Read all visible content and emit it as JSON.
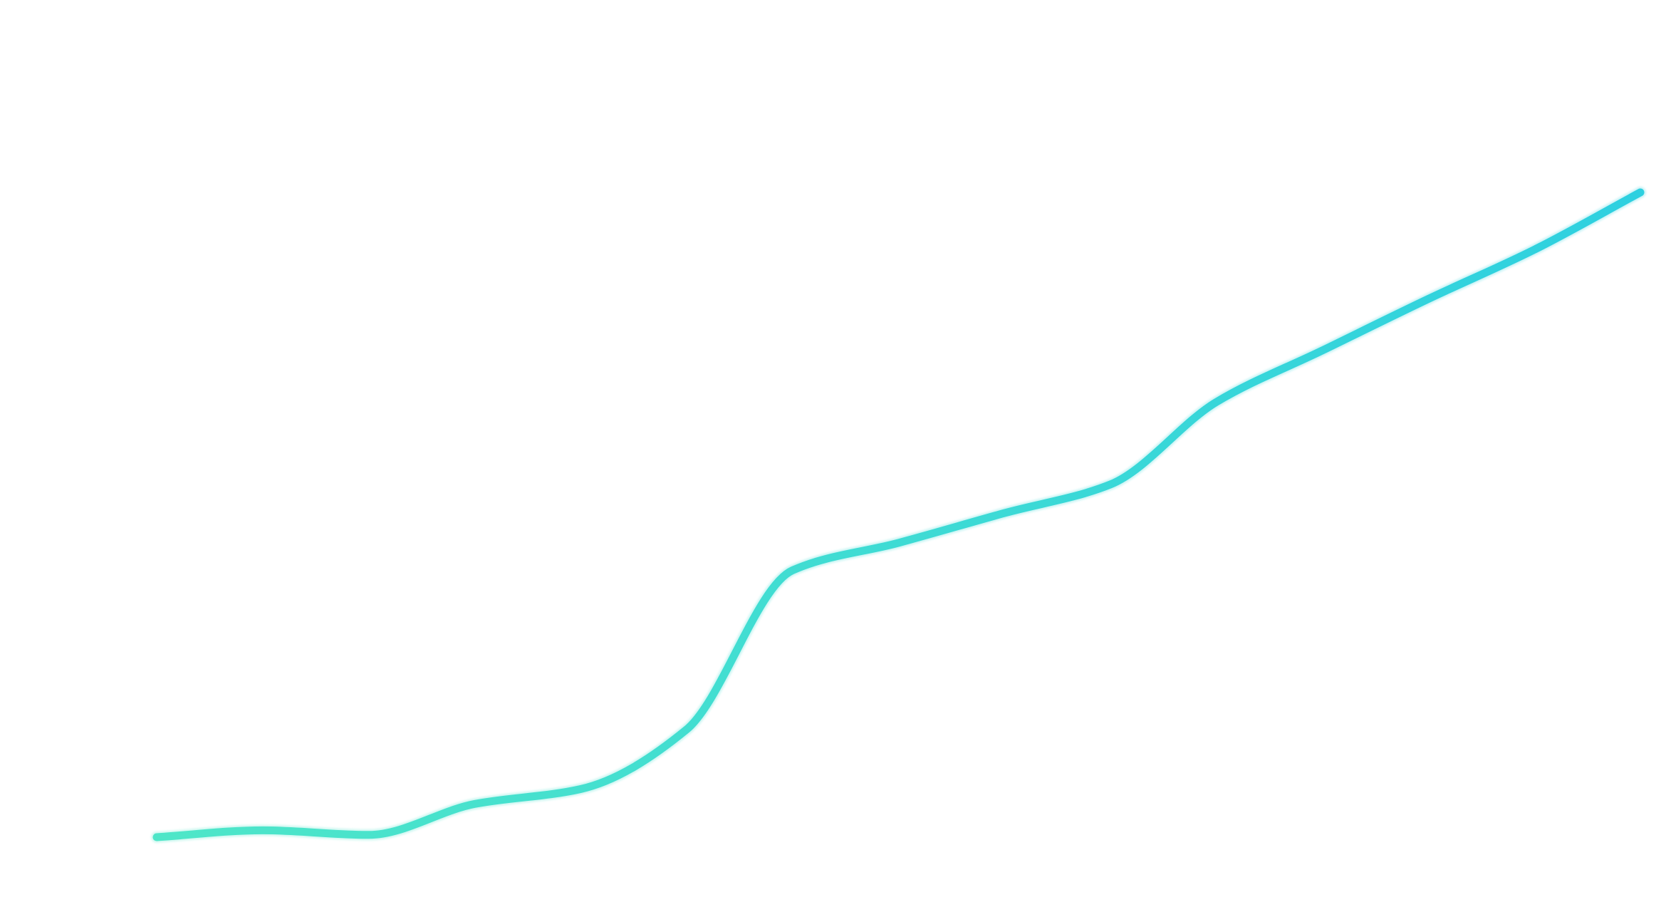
{
  "chart_data": {
    "type": "line",
    "title": "",
    "xlabel": "",
    "ylabel": "",
    "grid": false,
    "legend": "none",
    "x": [
      1,
      2,
      3,
      4,
      5,
      6,
      7,
      8,
      9,
      10,
      11,
      12,
      13,
      14,
      15
    ],
    "series": [
      {
        "values": [
          2,
          8,
          4,
          31,
          44,
          96,
          235,
          259,
          285,
          310,
          382,
          427,
          472,
          515,
          565
        ]
      }
    ],
    "xlim": [
      1,
      15
    ],
    "ylim": [
      2,
      565
    ],
    "style": {
      "gradient_start": "#4ee6c8",
      "gradient_end": "#2ed0e0",
      "smooth": true
    }
  }
}
